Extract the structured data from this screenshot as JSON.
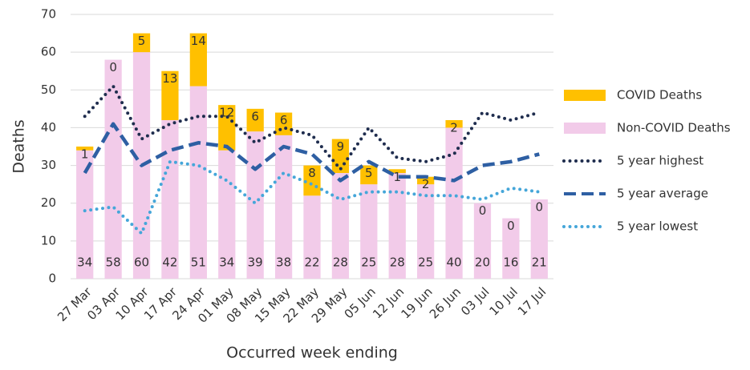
{
  "chart_data": {
    "type": "bar",
    "stacked": true,
    "y_label": "Deaths",
    "x_label": "Occurred week ending",
    "categories": [
      "27 Mar",
      "03 Apr",
      "10 Apr",
      "17 Apr",
      "24 Apr",
      "01 May",
      "08 May",
      "15 May",
      "22 May",
      "29 May",
      "05 Jun",
      "12 Jun",
      "19 Jun",
      "26 Jun",
      "03 Jul",
      "10 Jul",
      "17 Jul"
    ],
    "series": [
      {
        "name": "COVID Deaths",
        "type": "bar",
        "color": "#ffc000",
        "values": [
          1,
          0,
          5,
          13,
          14,
          12,
          6,
          6,
          8,
          9,
          5,
          1,
          2,
          2,
          0,
          0,
          0
        ]
      },
      {
        "name": "Non-COVID Deaths",
        "type": "bar",
        "color": "#f2cbe9",
        "values": [
          34,
          58,
          60,
          42,
          51,
          34,
          39,
          38,
          22,
          28,
          25,
          28,
          25,
          40,
          20,
          16,
          21
        ]
      },
      {
        "name": "5 year highest",
        "type": "line",
        "style": "dotted",
        "color": "#1f2d4e",
        "values": [
          43,
          51,
          37,
          41,
          43,
          43,
          36,
          40,
          38,
          29,
          40,
          32,
          31,
          33,
          44,
          42,
          44
        ]
      },
      {
        "name": "5 year average",
        "type": "line",
        "style": "dashed",
        "color": "#2e5fa3",
        "values": [
          28,
          41,
          30,
          34,
          36,
          35,
          29,
          35,
          33,
          26,
          31,
          27,
          27,
          26,
          30,
          31,
          33
        ]
      },
      {
        "name": "5 year lowest",
        "type": "line",
        "style": "dotted",
        "color": "#45a6d9",
        "values": [
          18,
          19,
          12,
          31,
          30,
          26,
          20,
          28,
          25,
          21,
          23,
          23,
          22,
          22,
          21,
          24,
          23
        ]
      }
    ],
    "ylim": [
      0,
      70
    ],
    "yticks": [
      0,
      10,
      20,
      30,
      40,
      50,
      60,
      70
    ],
    "grid": true,
    "legend": "right"
  }
}
